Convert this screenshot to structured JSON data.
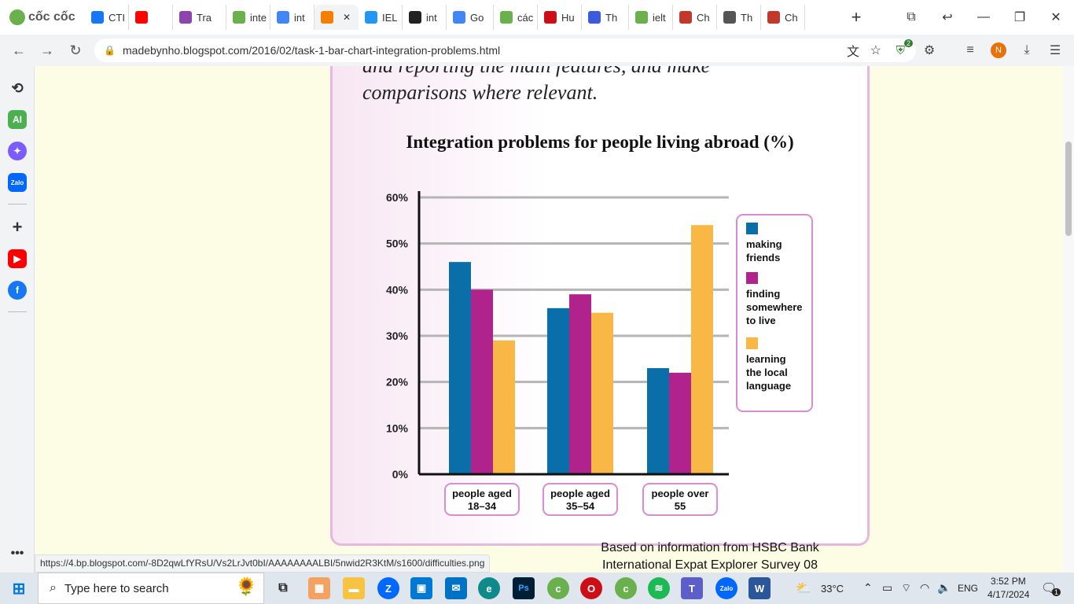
{
  "browser": {
    "brand": "cốc cốc",
    "tabs": [
      {
        "label": "CTI",
        "icon": "facebook-icon",
        "color": "#1877f2"
      },
      {
        "label": "",
        "icon": "youtube-icon",
        "color": "#ff0000"
      },
      {
        "label": "Tra",
        "icon": "chat-icon",
        "color": "#8e44ad"
      },
      {
        "label": "inte",
        "icon": "coccoc-icon",
        "color": "#6ab04c"
      },
      {
        "label": "int",
        "icon": "google-icon",
        "color": "#4285f4"
      },
      {
        "label": "",
        "icon": "blogger-icon",
        "color": "#f57d00",
        "active": true
      },
      {
        "label": "IEL",
        "icon": "check-icon",
        "color": "#2196f3"
      },
      {
        "label": "int",
        "icon": "book-icon",
        "color": "#222222"
      },
      {
        "label": "Go",
        "icon": "translate-icon",
        "color": "#4285f4"
      },
      {
        "label": "các",
        "icon": "coccoc-icon",
        "color": "#6ab04c"
      },
      {
        "label": "Hu",
        "icon": "opera-icon",
        "color": "#cc0f16"
      },
      {
        "label": "Th",
        "icon": "quillbot-icon",
        "color": "#3b5bdb"
      },
      {
        "label": "ielt",
        "icon": "coccoc-icon",
        "color": "#6ab04c"
      },
      {
        "label": "Ch",
        "icon": "chinese-icon",
        "color": "#c0392b"
      },
      {
        "label": "Th",
        "icon": "steam-icon",
        "color": "#555555"
      },
      {
        "label": "Ch",
        "icon": "chinese-icon",
        "color": "#c0392b"
      }
    ],
    "url": "madebynho.blogspot.com/2016/02/task-1-bar-chart-integration-problems.html",
    "extension_badge": "2",
    "profile_initial": "N",
    "status_url": "https://4.bp.blogspot.com/-8D2qwLfYRsU/Vs2LrJvt0bI/AAAAAAAALBI/5nwid2R3KtM/s1600/difficulties.png"
  },
  "page": {
    "prompt_text": "and reporting the main features, and make\ncomparisons where relevant."
  },
  "chart_data": {
    "type": "bar",
    "title": "Integration problems for people living abroad (%)",
    "categories": [
      "people aged 18–34",
      "people aged 35–54",
      "people over 55"
    ],
    "series": [
      {
        "name": "making friends",
        "values": [
          46,
          36,
          23
        ],
        "color": "#0a6fa8"
      },
      {
        "name": "finding somewhere to live",
        "values": [
          40,
          39,
          22
        ],
        "color": "#b0228c"
      },
      {
        "name": "learning the local language",
        "values": [
          29,
          35,
          54
        ],
        "color": "#f9b845"
      }
    ],
    "ylim": [
      0,
      60
    ],
    "yticks": [
      "0%",
      "10%",
      "20%",
      "30%",
      "40%",
      "50%",
      "60%"
    ],
    "grid": true,
    "legend": "right",
    "source": "Based on information from HSBC Bank\nInternational Expat Explorer Survey 08"
  },
  "taskbar": {
    "search_placeholder": "Type here to search",
    "weather": "33°C",
    "language": "ENG",
    "time": "3:52 PM",
    "date": "4/17/2024",
    "notification_count": "1"
  }
}
